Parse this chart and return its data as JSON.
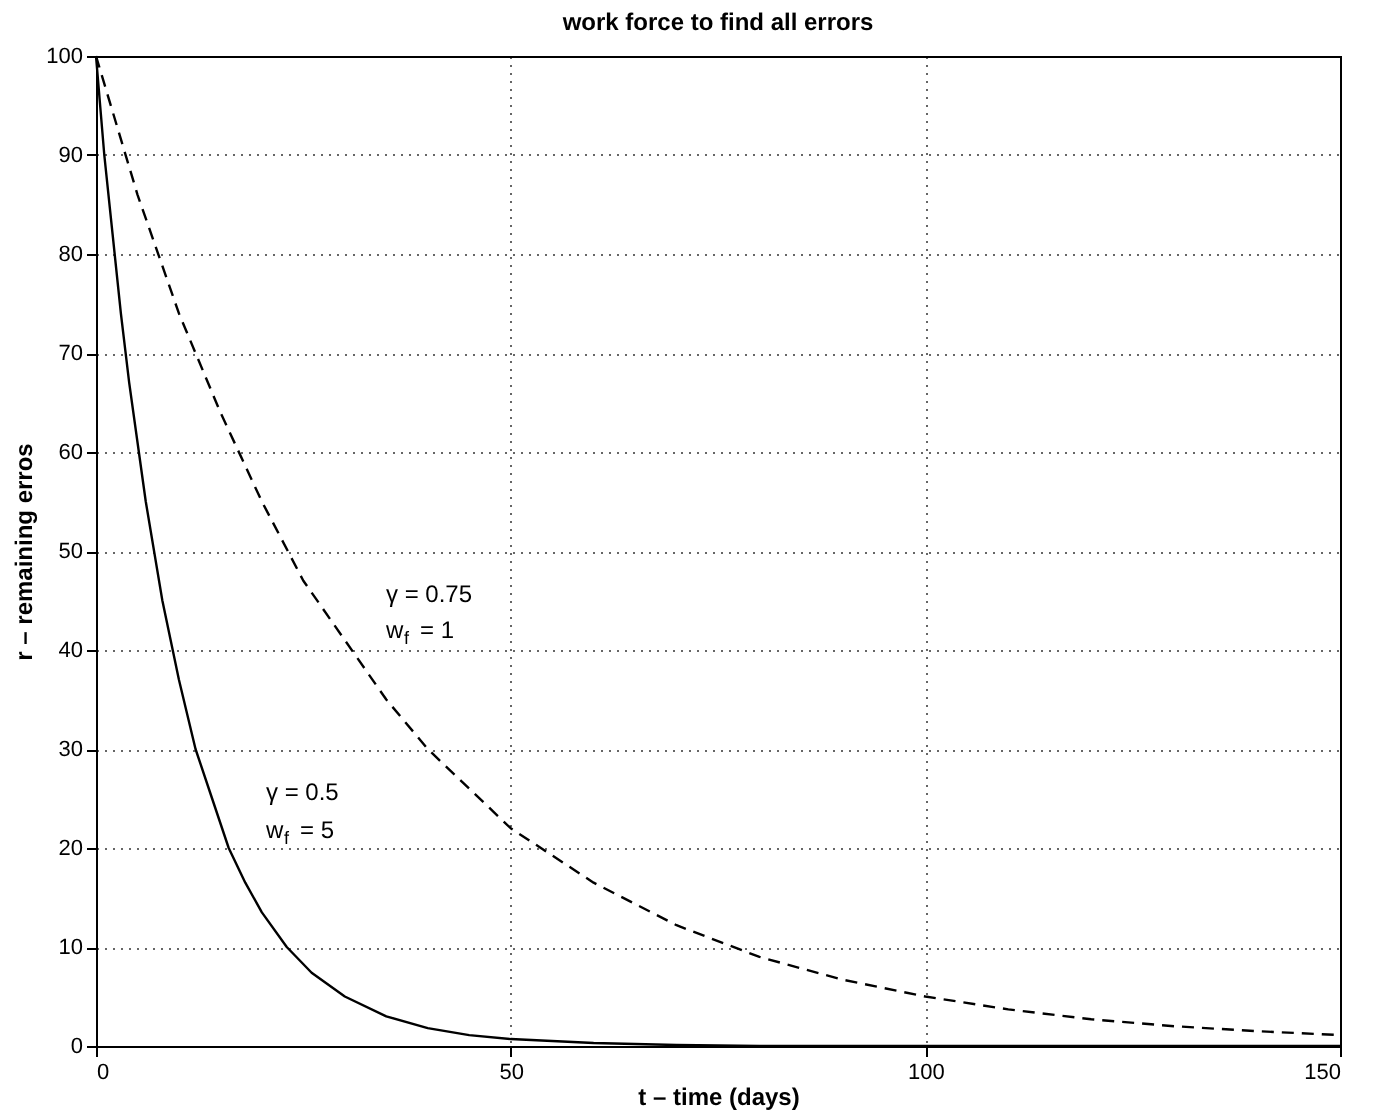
{
  "chart_data": {
    "type": "line",
    "title": "work force to find all errors",
    "xlabel": "t – time (days)",
    "ylabel": "r – remaining erros",
    "xlim": [
      0,
      150
    ],
    "xticks": [
      0,
      50,
      100,
      150
    ],
    "ylim": [
      0,
      100
    ],
    "yticks": [
      0,
      10,
      20,
      30,
      40,
      50,
      60,
      70,
      80,
      90,
      100
    ],
    "grid": true,
    "marker": "none",
    "series": [
      {
        "color": "#000000",
        "line_style": "solid",
        "x": [
          0,
          1,
          2,
          3,
          4,
          6,
          8,
          10,
          12,
          14,
          16,
          18,
          20,
          23,
          26,
          30,
          35,
          40,
          45,
          50,
          60,
          70,
          80,
          100,
          150
        ],
        "values": [
          100,
          90,
          82,
          74,
          67,
          55,
          45,
          37,
          30,
          25,
          20,
          16.5,
          13.5,
          10,
          7.4,
          5,
          3,
          1.8,
          1.1,
          0.7,
          0.3,
          0.1,
          0,
          0,
          0
        ]
      },
      {
        "color": "#000000",
        "line_style": "dashed",
        "x": [
          0,
          5,
          10,
          15,
          20,
          25,
          30,
          35,
          40,
          45,
          50,
          60,
          70,
          80,
          90,
          100,
          110,
          120,
          130,
          140,
          150
        ],
        "values": [
          100,
          86,
          74,
          64,
          55,
          47,
          41,
          35,
          30,
          26,
          22,
          16.5,
          12.2,
          9,
          6.7,
          5,
          3.7,
          2.7,
          2,
          1.5,
          1.1
        ]
      }
    ],
    "annotations": [
      "γ = 0.75",
      "w$_{f}$ = 1",
      "γ = 0.5",
      "w$_{f}$ = 5"
    ]
  }
}
